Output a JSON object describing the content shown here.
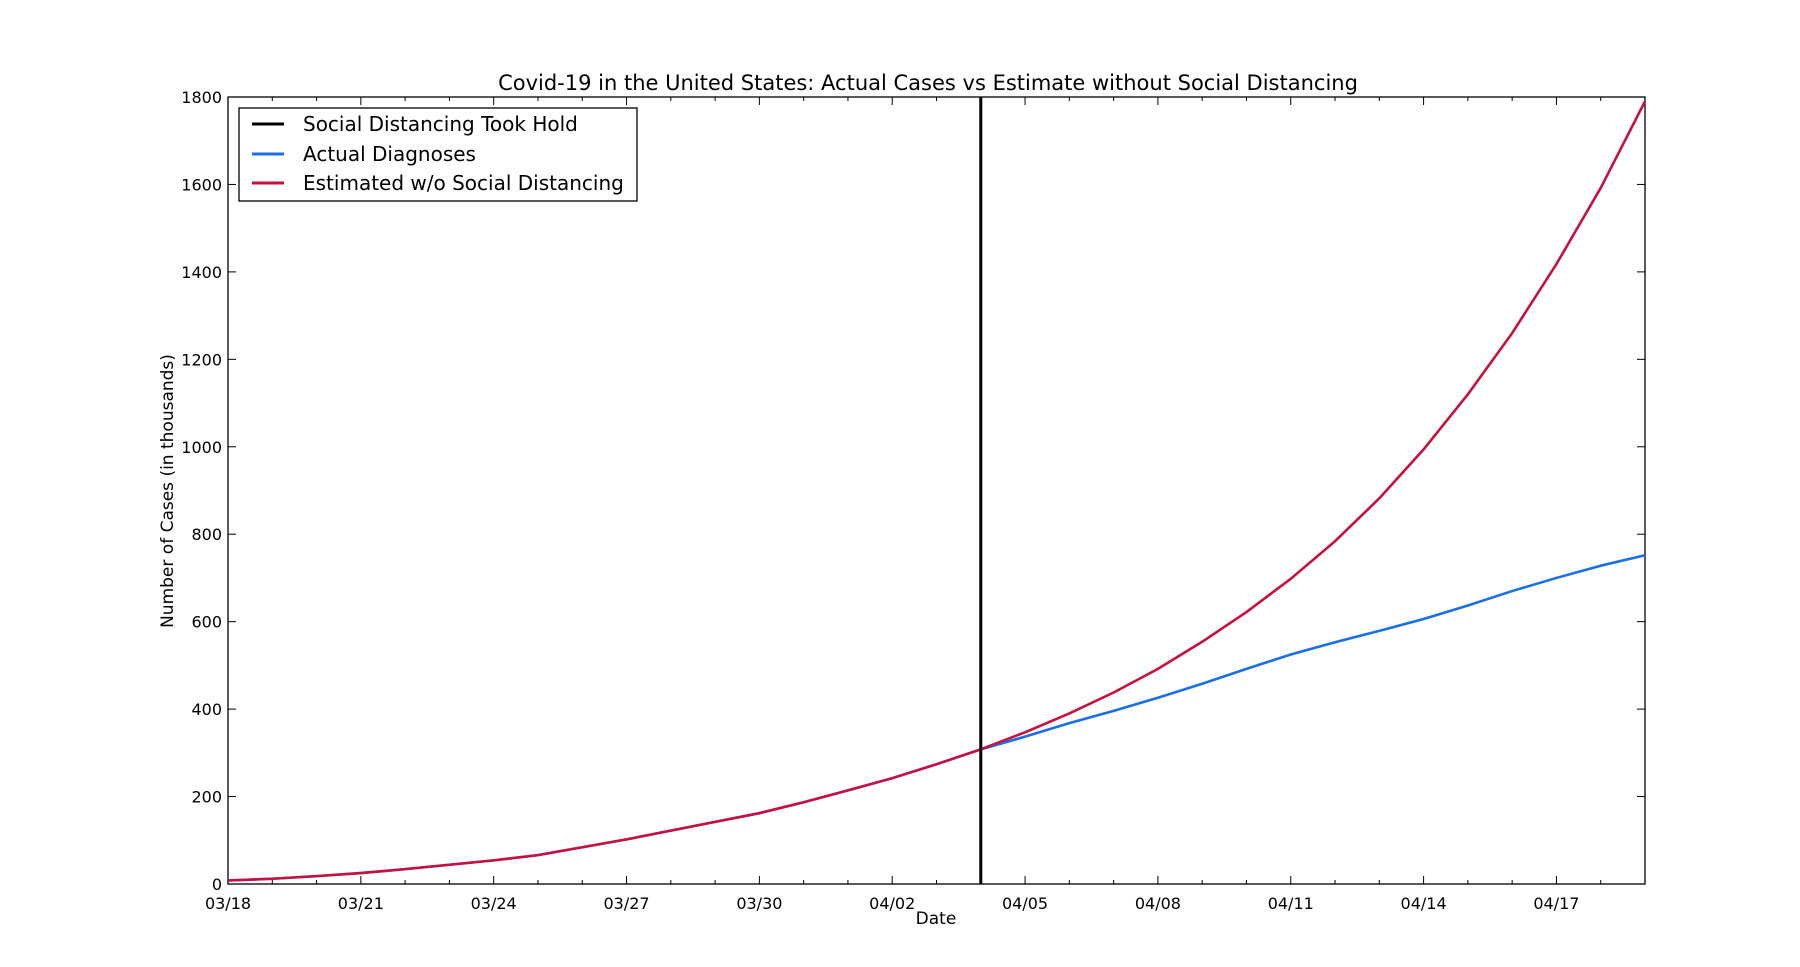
{
  "chart_data": {
    "type": "line",
    "title": "Covid-19 in the United States: Actual Cases vs Estimate without Social Distancing",
    "xlabel": "Date",
    "ylabel": "Number of Cases (in thousands)",
    "x": [
      "03/18",
      "03/19",
      "03/20",
      "03/21",
      "03/22",
      "03/23",
      "03/24",
      "03/25",
      "03/26",
      "03/27",
      "03/28",
      "03/29",
      "03/30",
      "03/31",
      "04/01",
      "04/02",
      "04/03",
      "04/04",
      "04/05",
      "04/06",
      "04/07",
      "04/08",
      "04/09",
      "04/10",
      "04/11",
      "04/12",
      "04/13",
      "04/14",
      "04/15",
      "04/16",
      "04/17",
      "04/18",
      "04/19"
    ],
    "xlim": [
      "03/18",
      "04/19"
    ],
    "xticks": [
      "03/18",
      "03/21",
      "03/24",
      "03/27",
      "03/30",
      "04/02",
      "04/05",
      "04/08",
      "04/11",
      "04/14",
      "04/17"
    ],
    "ylim": [
      0,
      1800
    ],
    "yticks": [
      0,
      200,
      400,
      600,
      800,
      1000,
      1200,
      1400,
      1600,
      1800
    ],
    "grid": false,
    "legend_position": "top-left",
    "vline": {
      "x": "04/04",
      "name": "Social Distancing Took Hold",
      "color": "#000000"
    },
    "series": [
      {
        "name": "Actual Diagnoses",
        "color": "#1a6fe6",
        "values": [
          8,
          12,
          18,
          25,
          34,
          44,
          54,
          66,
          84,
          102,
          122,
          142,
          162,
          187,
          214,
          242,
          274,
          308,
          337,
          368,
          396,
          426,
          458,
          492,
          525,
          553,
          579,
          606,
          637,
          670,
          700,
          728,
          752
        ]
      },
      {
        "name": "Estimated w/o Social Distancing",
        "color": "#c8103e",
        "values": [
          8,
          12,
          18,
          25,
          34,
          44,
          54,
          66,
          84,
          102,
          122,
          142,
          162,
          187,
          214,
          242,
          274,
          308,
          347,
          390,
          438,
          492,
          554,
          622,
          698,
          784,
          882,
          994,
          1120,
          1260,
          1418,
          1592,
          1790
        ]
      }
    ]
  }
}
